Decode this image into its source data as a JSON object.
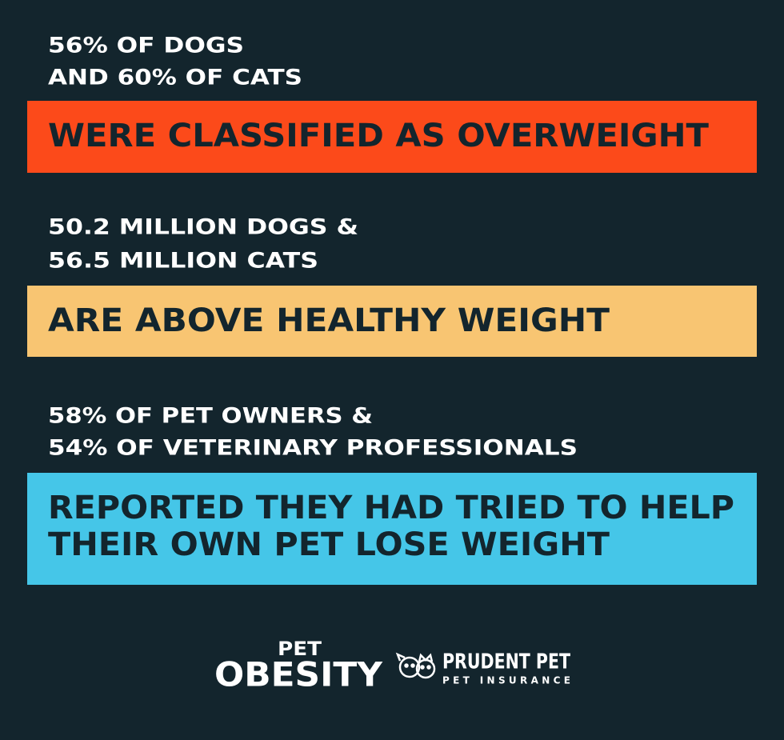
{
  "sections": [
    {
      "stat_lines": [
        "56% OF DOGS",
        "AND 60% OF CATS"
      ],
      "banner_lines": [
        "WERE CLASSIFIED AS OVERWEIGHT"
      ]
    },
    {
      "stat_lines": [
        "50.2 MILLION DOGS &",
        "56.5 MILLION CATS"
      ],
      "banner_lines": [
        "ARE ABOVE HEALTHY WEIGHT"
      ]
    },
    {
      "stat_lines": [
        "58% OF PET OWNERS &",
        "54% OF VETERINARY PROFESSIONALS"
      ],
      "banner_lines": [
        "REPORTED THEY HAD TRIED TO HELP",
        "THEIR OWN PET LOSE WEIGHT"
      ]
    }
  ],
  "footer": {
    "logo_top": "PET",
    "logo_bottom": "OBESITY",
    "brand": "PRUDENT PET",
    "brand_sub": "PET INSURANCE"
  }
}
